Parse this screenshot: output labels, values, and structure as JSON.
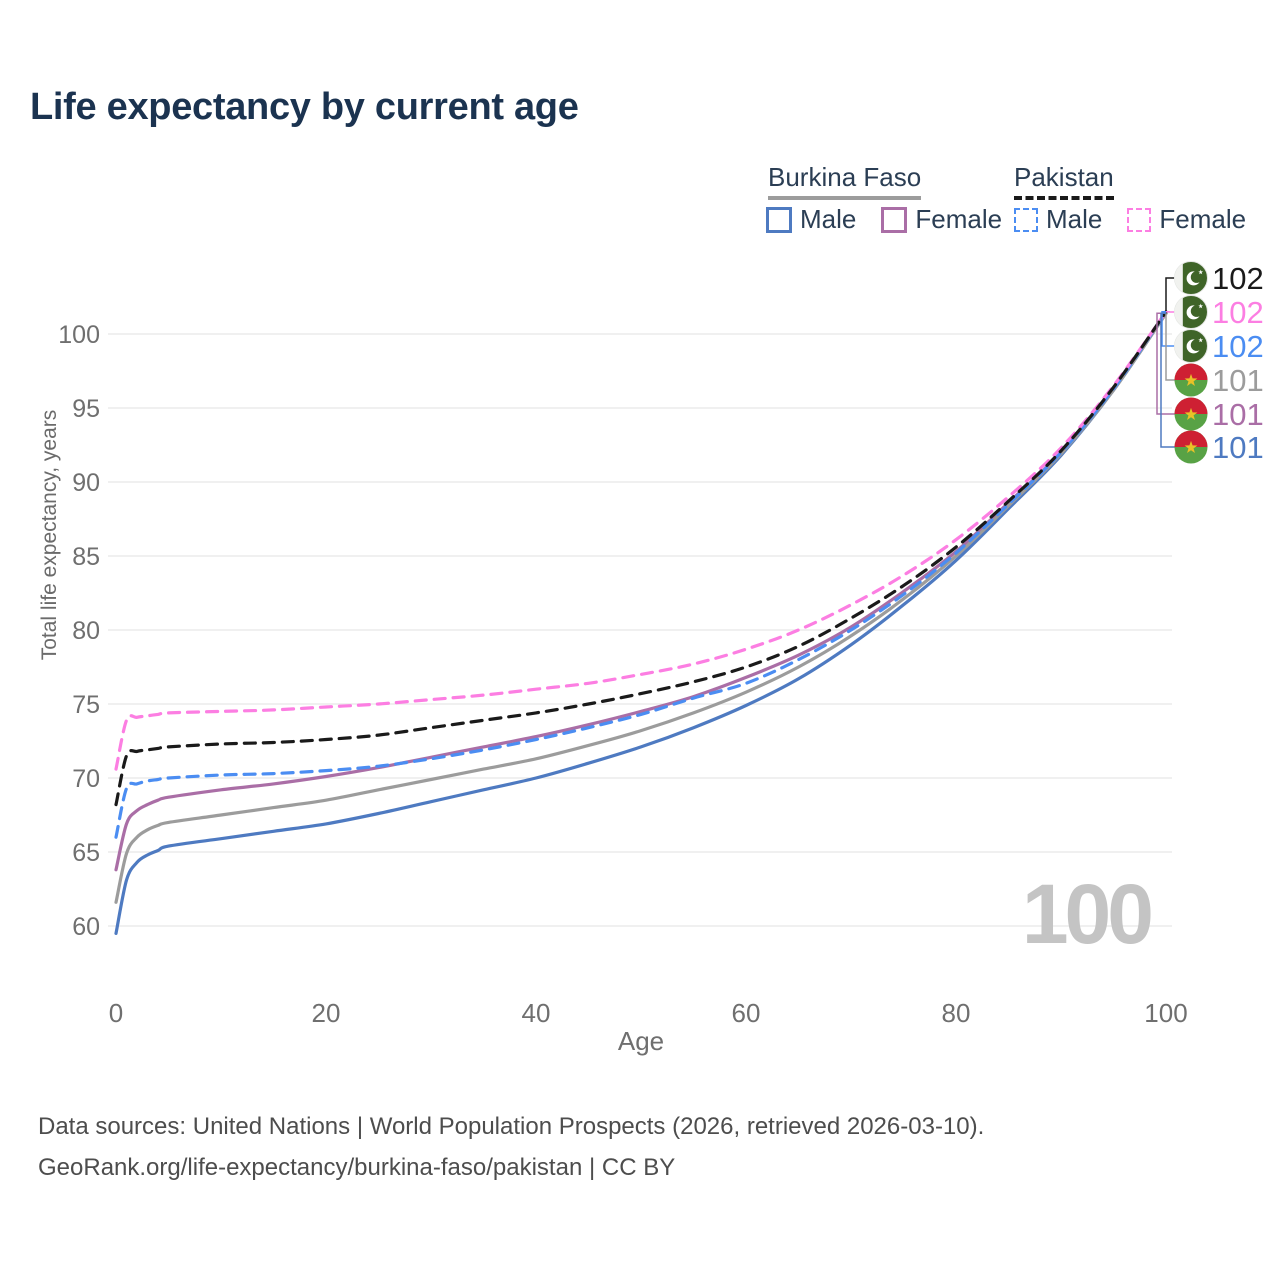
{
  "title": "Life expectancy by current age",
  "legend": {
    "groups": [
      {
        "country": "Burkina Faso",
        "line_style": "solid",
        "line_color": "#9c9c9c",
        "items": [
          {
            "label": "Male",
            "color": "#4e7ac1",
            "dash": false
          },
          {
            "label": "Female",
            "color": "#aa6ea6",
            "dash": false
          }
        ]
      },
      {
        "country": "Pakistan",
        "line_style": "dashed",
        "line_color": "#1a1a1a",
        "items": [
          {
            "label": "Male",
            "color": "#4b8df2",
            "dash": true
          },
          {
            "label": "Female",
            "color": "#fc7ee2",
            "dash": true
          }
        ]
      }
    ]
  },
  "chart_data": {
    "type": "line",
    "title": "Life expectancy by current age",
    "xlabel": "Age",
    "ylabel": "Total life expectancy, years",
    "x_ticks": [
      0,
      20,
      40,
      60,
      80,
      100
    ],
    "y_ticks": [
      60,
      65,
      70,
      75,
      80,
      85,
      90,
      95,
      100
    ],
    "xlim": [
      0,
      100
    ],
    "ylim": [
      59,
      102
    ],
    "grid": true,
    "legend_position": "top-right",
    "ages": [
      0,
      1,
      2,
      3,
      4,
      5,
      10,
      15,
      20,
      25,
      30,
      35,
      40,
      45,
      50,
      55,
      60,
      65,
      70,
      75,
      80,
      85,
      90,
      95,
      100
    ],
    "series": [
      {
        "country": "Pakistan",
        "group": "Both sexes",
        "color": "#1a1a1a",
        "dash": true,
        "flag": "pakistan",
        "end_label": "102",
        "values": [
          68.2,
          71.5,
          71.8,
          71.9,
          72.0,
          72.1,
          72.3,
          72.4,
          72.6,
          72.9,
          73.4,
          73.9,
          74.4,
          75.0,
          75.7,
          76.5,
          77.5,
          78.9,
          80.8,
          83.0,
          85.6,
          88.7,
          92.1,
          96.4,
          101.5
        ]
      },
      {
        "country": "Pakistan",
        "group": "Female",
        "color": "#fc7ee2",
        "dash": true,
        "flag": "pakistan",
        "end_label": "102",
        "values": [
          70.6,
          73.9,
          74.1,
          74.2,
          74.3,
          74.4,
          74.5,
          74.6,
          74.8,
          75.0,
          75.3,
          75.6,
          76.0,
          76.4,
          77.0,
          77.7,
          78.7,
          80.0,
          81.7,
          83.7,
          86.1,
          89.0,
          92.3,
          96.5,
          101.5
        ]
      },
      {
        "country": "Pakistan",
        "group": "Male",
        "color": "#4b8df2",
        "dash": true,
        "flag": "pakistan",
        "end_label": "102",
        "values": [
          66.0,
          69.3,
          69.6,
          69.8,
          69.9,
          70.0,
          70.2,
          70.3,
          70.5,
          70.8,
          71.3,
          71.9,
          72.6,
          73.4,
          74.3,
          75.4,
          76.4,
          78.0,
          80.0,
          82.4,
          85.2,
          88.5,
          92.0,
          96.3,
          101.5
        ]
      },
      {
        "country": "Burkina Faso",
        "group": "Both sexes",
        "color": "#9c9c9c",
        "dash": false,
        "flag": "burkina-faso",
        "end_label": "101",
        "values": [
          61.6,
          64.9,
          66.0,
          66.5,
          66.8,
          67.0,
          67.5,
          68.0,
          68.5,
          69.2,
          69.9,
          70.6,
          71.3,
          72.2,
          73.2,
          74.4,
          75.8,
          77.5,
          79.6,
          82.1,
          85.0,
          88.4,
          91.9,
          96.2,
          101.4
        ]
      },
      {
        "country": "Burkina Faso",
        "group": "Female",
        "color": "#aa6ea6",
        "dash": false,
        "flag": "burkina-faso",
        "end_label": "101",
        "values": [
          63.8,
          66.9,
          67.8,
          68.2,
          68.5,
          68.7,
          69.2,
          69.6,
          70.1,
          70.7,
          71.4,
          72.1,
          72.8,
          73.6,
          74.5,
          75.5,
          76.8,
          78.3,
          80.2,
          82.6,
          85.3,
          88.6,
          92.0,
          96.3,
          101.4
        ]
      },
      {
        "country": "Burkina Faso",
        "group": "Male",
        "color": "#4e7ac1",
        "dash": false,
        "flag": "burkina-faso",
        "end_label": "101",
        "values": [
          59.5,
          63.1,
          64.3,
          64.8,
          65.1,
          65.4,
          65.9,
          66.4,
          66.9,
          67.6,
          68.4,
          69.2,
          70.0,
          71.0,
          72.1,
          73.4,
          74.9,
          76.7,
          79.0,
          81.7,
          84.7,
          88.2,
          91.8,
          96.2,
          101.4
        ]
      }
    ]
  },
  "icons": {
    "pakistan_flag": {
      "green": "#3f6428",
      "band": "#f1f2ef",
      "crescent": "#ffffff"
    },
    "burkina_faso_flag": {
      "red": "#ce2033",
      "green": "#58a245",
      "star": "#e9c227"
    }
  },
  "watermark": {
    "text": "100"
  },
  "footer": {
    "line1": "Data sources: United Nations | World Population Prospects (2026, retrieved 2026-03-10).",
    "line2": "GeoRank.org/life-expectancy/burkina-faso/pakistan | CC BY"
  }
}
